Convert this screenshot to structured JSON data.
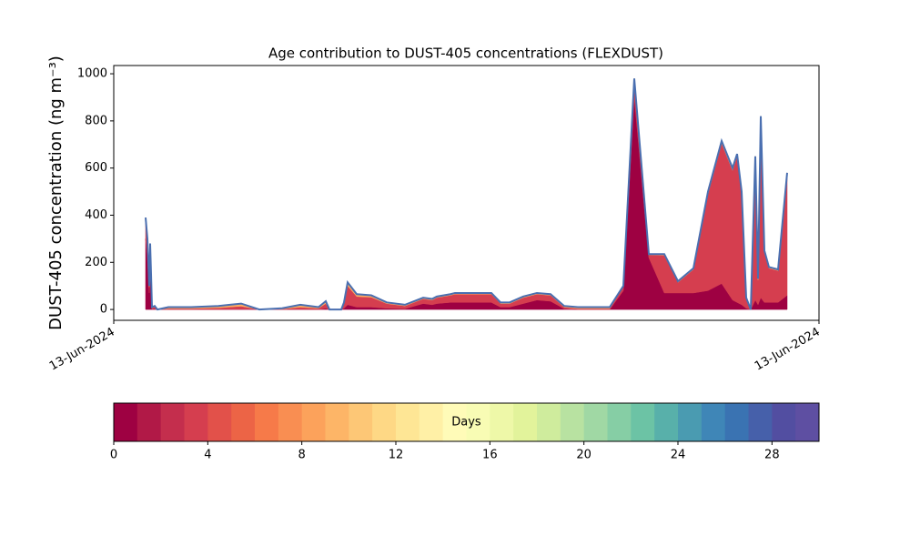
{
  "chart_data": {
    "type": "stacked_area",
    "title": "Age contribution to DUST-405 concentrations (FLEXDUST)",
    "ylabel": "DUST-405 concentration (ng m⁻³)",
    "x": [
      35,
      37,
      39,
      40,
      41,
      42,
      45,
      48,
      60,
      85,
      115,
      140,
      160,
      185,
      205,
      225,
      233,
      237,
      250,
      253,
      257,
      267,
      283,
      300,
      320,
      340,
      350,
      355,
      370,
      375,
      415,
      425,
      435,
      450,
      465,
      480,
      495,
      510,
      525,
      545,
      560,
      572,
      588,
      605,
      620,
      637,
      653,
      668,
      680,
      685,
      690,
      695,
      700,
      705,
      708,
      711,
      715,
      720,
      730,
      740
    ],
    "xlim": [
      0,
      775
    ],
    "xticks": [
      {
        "value": 0,
        "label": "13-Jun-2024"
      },
      {
        "value": 775,
        "label": "13-Jun-2024"
      }
    ],
    "ylim": [
      -46,
      1035
    ],
    "yticks": [
      0,
      200,
      400,
      600,
      800,
      1000
    ],
    "outline_color": "#4a6fb0",
    "series": [
      {
        "color": "#9e0142",
        "values": [
          300,
          220,
          70,
          200,
          100,
          2,
          3,
          0,
          0,
          0,
          0,
          2,
          0,
          0,
          1,
          0,
          5,
          0,
          0,
          5,
          20,
          10,
          10,
          5,
          3,
          25,
          20,
          25,
          30,
          30,
          30,
          10,
          10,
          25,
          40,
          35,
          3,
          0,
          0,
          0,
          80,
          900,
          220,
          70,
          70,
          70,
          80,
          110,
          40,
          30,
          20,
          5,
          0,
          40,
          20,
          50,
          30,
          30,
          30,
          60
        ]
      },
      {
        "color": "#d53e4f",
        "values": [
          80,
          70,
          25,
          70,
          40,
          5,
          8,
          0,
          4,
          4,
          7,
          12,
          0,
          2,
          9,
          5,
          20,
          0,
          0,
          20,
          80,
          45,
          42,
          20,
          12,
          20,
          20,
          25,
          30,
          35,
          35,
          15,
          15,
          25,
          25,
          25,
          7,
          4,
          4,
          4,
          17,
          70,
          12,
          160,
          45,
          100,
          410,
          595,
          550,
          620,
          470,
          40,
          0,
          600,
          105,
          760,
          215,
          145,
          135,
          510
        ]
      },
      {
        "color": "#fdae61",
        "values": [
          10,
          10,
          5,
          10,
          10,
          3,
          4,
          0,
          6,
          6,
          8,
          11,
          0,
          3,
          10,
          5,
          10,
          0,
          0,
          5,
          15,
          10,
          8,
          5,
          5,
          5,
          5,
          5,
          5,
          5,
          5,
          5,
          5,
          5,
          5,
          5,
          5,
          6,
          6,
          6,
          3,
          10,
          3,
          5,
          5,
          5,
          10,
          10,
          10,
          10,
          10,
          5,
          0,
          10,
          5,
          10,
          5,
          5,
          5,
          10
        ]
      }
    ],
    "colorbar": {
      "label": "Days",
      "lim": [
        0,
        30
      ],
      "ticks": [
        0,
        4,
        8,
        12,
        16,
        20,
        24,
        28
      ],
      "colors": [
        "#9e0142",
        "#b11947",
        "#c42e4d",
        "#d53e4f",
        "#e2514a",
        "#ec6446",
        "#f67a49",
        "#f98e52",
        "#fca25b",
        "#fdb567",
        "#fdc776",
        "#fed885",
        "#fee695",
        "#fff0a6",
        "#fffbb8",
        "#f8fcb4",
        "#eef8a8",
        "#e2f39b",
        "#cfec9d",
        "#b8e2a1",
        "#a0d8a4",
        "#86cea5",
        "#6cc3a5",
        "#58b0aa",
        "#4a9bb1",
        "#3f86b7",
        "#3a73b2",
        "#4660aa",
        "#524ea1",
        "#5e4fa2"
      ]
    }
  }
}
